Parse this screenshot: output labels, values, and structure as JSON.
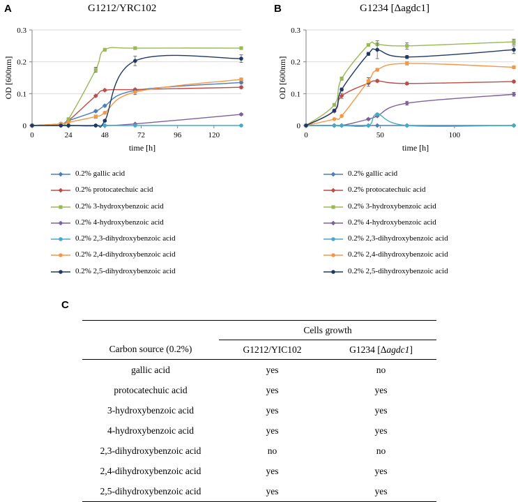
{
  "panels": {
    "a": {
      "letter": "A",
      "title": "G1212/YRC102"
    },
    "b": {
      "letter": "B",
      "title": "G1234 [Δagdc1]"
    },
    "c": {
      "letter": "C"
    }
  },
  "legend": {
    "items": [
      {
        "label": "0.2% gallic acid",
        "color": "#4a7ebb"
      },
      {
        "label": "0.2% protocatechuic acid",
        "color": "#be4b48"
      },
      {
        "label": "0.2% 3-hydroxybenzoic acid",
        "color": "#98b954"
      },
      {
        "label": "0.2% 4-hydroxybenzoic acid",
        "color": "#7d60a0"
      },
      {
        "label": "0.2% 2,3-dihydroxybenzoic acid",
        "color": "#46aac5"
      },
      {
        "label": "0.2% 2,4-dihydroxybenzoic acid",
        "color": "#f79646"
      },
      {
        "label": "0.2% 2,5-dihydroxybenzoic acid",
        "color": "#1f3864"
      }
    ]
  },
  "chart_data": [
    {
      "type": "line",
      "title": "G1212/YRC102",
      "xlabel": "time [h]",
      "ylabel": "OD [600nm]",
      "xlim": [
        0,
        138
      ],
      "ylim": [
        0,
        0.3
      ],
      "xticks": [
        0,
        24,
        48,
        72,
        96,
        120
      ],
      "yticks": [
        0,
        0.1,
        0.2,
        0.3
      ],
      "ytick_labels": [
        "0",
        "0.1",
        "0.2",
        "0.3"
      ],
      "series": [
        {
          "name": "0.2% gallic acid",
          "x": [
            0,
            19,
            24,
            42,
            48,
            68,
            138
          ],
          "y": [
            0,
            0.005,
            0.015,
            0.045,
            0.062,
            0.11,
            0.135
          ],
          "err": [
            0,
            0,
            0,
            0.003,
            0.003,
            0.004,
            0.004
          ]
        },
        {
          "name": "0.2% protocatechuic acid",
          "x": [
            0,
            19,
            24,
            42,
            48,
            68,
            138
          ],
          "y": [
            0,
            0.005,
            0.015,
            0.093,
            0.111,
            0.113,
            0.12
          ],
          "err": [
            0,
            0,
            0,
            0.003,
            0.003,
            0.003,
            0.004
          ]
        },
        {
          "name": "0.2% 3-hydroxybenzoic acid",
          "x": [
            0,
            19,
            24,
            42,
            48,
            68,
            138
          ],
          "y": [
            0,
            0.005,
            0.02,
            0.175,
            0.238,
            0.243,
            0.243
          ],
          "err": [
            0,
            0,
            0,
            0.008,
            0.003,
            0.003,
            0.003
          ]
        },
        {
          "name": "0.2% 4-hydroxybenzoic acid",
          "x": [
            0,
            19,
            24,
            42,
            48,
            68,
            138
          ],
          "y": [
            0,
            0,
            0,
            0,
            0,
            0.005,
            0.035
          ],
          "err": [
            0,
            0,
            0,
            0,
            0,
            0,
            0.003
          ]
        },
        {
          "name": "0.2% 2,3-dihydroxybenzoic acid",
          "x": [
            0,
            19,
            24,
            42,
            48,
            68,
            138
          ],
          "y": [
            0,
            0,
            0,
            0,
            0,
            0,
            0
          ],
          "err": [
            0,
            0,
            0,
            0,
            0,
            0,
            0
          ]
        },
        {
          "name": "0.2% 2,4-dihydroxybenzoic acid",
          "x": [
            0,
            19,
            24,
            42,
            48,
            68,
            138
          ],
          "y": [
            0,
            0.005,
            0.01,
            0.028,
            0.04,
            0.105,
            0.145
          ],
          "err": [
            0,
            0,
            0,
            0.005,
            0.003,
            0.008,
            0.004
          ]
        },
        {
          "name": "0.2% 2,5-dihydroxybenzoic acid",
          "x": [
            0,
            19,
            24,
            42,
            48,
            68,
            138
          ],
          "y": [
            0,
            0,
            0,
            0,
            0.015,
            0.203,
            0.21
          ],
          "err": [
            0,
            0,
            0,
            0,
            0.003,
            0.015,
            0.012
          ]
        }
      ]
    },
    {
      "type": "line",
      "title": "G1234 [Δagdc1]",
      "xlabel": "time [h]",
      "ylabel": "OD [600nm]",
      "xlim": [
        0,
        140
      ],
      "ylim": [
        0,
        0.3
      ],
      "xticks": [
        0,
        50,
        100
      ],
      "yticks": [
        0,
        0.1,
        0.2,
        0.3
      ],
      "ytick_labels": [
        "0",
        "0.1",
        "0.2",
        "0.3"
      ],
      "series": [
        {
          "name": "0.2% gallic acid",
          "x": [
            0,
            19,
            24,
            42,
            48,
            68,
            140
          ],
          "y": [
            0,
            0,
            0,
            0,
            0,
            0,
            0
          ],
          "err": [
            0,
            0,
            0,
            0,
            0,
            0,
            0
          ]
        },
        {
          "name": "0.2% protocatechuic acid",
          "x": [
            0,
            19,
            24,
            42,
            48,
            68,
            140
          ],
          "y": [
            0,
            0.045,
            0.093,
            0.133,
            0.14,
            0.132,
            0.138
          ],
          "err": [
            0,
            0.003,
            0.008,
            0.01,
            0.004,
            0.004,
            0.004
          ]
        },
        {
          "name": "0.2% 3-hydroxybenzoic acid",
          "x": [
            0,
            19,
            24,
            42,
            48,
            68,
            140
          ],
          "y": [
            0,
            0.065,
            0.147,
            0.253,
            0.255,
            0.25,
            0.263
          ],
          "err": [
            0,
            0.004,
            0.005,
            0.004,
            0.004,
            0.01,
            0.008
          ]
        },
        {
          "name": "0.2% 4-hydroxybenzoic acid",
          "x": [
            0,
            19,
            24,
            42,
            48,
            68,
            140
          ],
          "y": [
            0,
            0,
            0,
            0.02,
            0.03,
            0.07,
            0.098
          ],
          "err": [
            0,
            0,
            0,
            0.003,
            0.003,
            0.006,
            0.006
          ]
        },
        {
          "name": "0.2% 2,3-dihydroxybenzoic acid",
          "x": [
            0,
            19,
            24,
            42,
            48,
            68,
            140
          ],
          "y": [
            0,
            0,
            0,
            0,
            0.035,
            0,
            0
          ],
          "err": [
            0,
            0,
            0,
            0,
            0.003,
            0,
            0
          ]
        },
        {
          "name": "0.2% 2,4-dihydroxybenzoic acid",
          "x": [
            0,
            19,
            24,
            42,
            48,
            68,
            140
          ],
          "y": [
            0,
            0.02,
            0.03,
            0.14,
            0.175,
            0.195,
            0.183
          ],
          "err": [
            0,
            0,
            0,
            0.01,
            0.004,
            0.005,
            0.004
          ]
        },
        {
          "name": "0.2% 2,5-dihydroxybenzoic acid",
          "x": [
            0,
            19,
            24,
            42,
            48,
            68,
            140
          ],
          "y": [
            0,
            0.047,
            0.113,
            0.225,
            0.238,
            0.215,
            0.238
          ],
          "err": [
            0,
            0.003,
            0.005,
            0.005,
            0.028,
            0.005,
            0.012
          ]
        }
      ]
    },
    {
      "type": "table",
      "group_header": "Cells growth",
      "columns": [
        "Carbon source (0.2%)",
        "G1212/YIC102",
        "G1234 [Δagdc1]"
      ],
      "rows": [
        {
          "source": "gallic acid",
          "g1212": "yes",
          "g1234": "no",
          "g1212_bold": false,
          "g1234_bold": true
        },
        {
          "source": "protocatechuic acid",
          "g1212": "yes",
          "g1234": "yes",
          "g1212_bold": false,
          "g1234_bold": false
        },
        {
          "source": "3-hydroxybenzoic acid",
          "g1212": "yes",
          "g1234": "yes",
          "g1212_bold": false,
          "g1234_bold": false
        },
        {
          "source": "4-hydroxybenzoic acid",
          "g1212": "yes",
          "g1234": "yes",
          "g1212_bold": false,
          "g1234_bold": false
        },
        {
          "source": "2,3-dihydroxybenzoic acid",
          "g1212": "no",
          "g1234": "no",
          "g1212_bold": true,
          "g1234_bold": true
        },
        {
          "source": "2,4-dihydroxybenzoic acid",
          "g1212": "yes",
          "g1234": "yes",
          "g1212_bold": false,
          "g1234_bold": false
        },
        {
          "source": "2,5-dihydroxybenzoic acid",
          "g1212": "yes",
          "g1234": "yes",
          "g1212_bold": false,
          "g1234_bold": false
        }
      ]
    }
  ]
}
